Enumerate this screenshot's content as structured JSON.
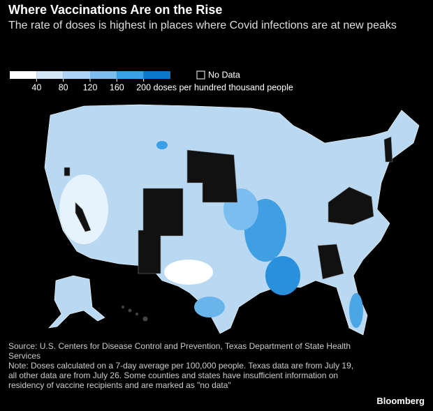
{
  "header": {
    "title": "Where Vaccinations Are on the Rise",
    "subtitle": "The rate of doses is highest in places where Covid infections are at new peaks"
  },
  "legend": {
    "colors": [
      "#ffffff",
      "#cfe6f8",
      "#aad3f5",
      "#7cbdef",
      "#3aa0e8",
      "#0b78cc"
    ],
    "ticks": [
      40,
      80,
      120,
      160,
      200
    ],
    "unit": "doses per hundred thousand people",
    "no_data": "No Data"
  },
  "footer": {
    "source": "Source: U.S. Centers for Disease Control and Prevention, Texas Department of State Health Services",
    "note": "Note: Doses calculated on a 7-day average per 100,000 people. Texas data are from July 19, all other data are from July 26. Some counties and states have insufficient information on residency of vaccine recipients and are marked as \"no data\"",
    "brand": "Bloomberg"
  }
}
